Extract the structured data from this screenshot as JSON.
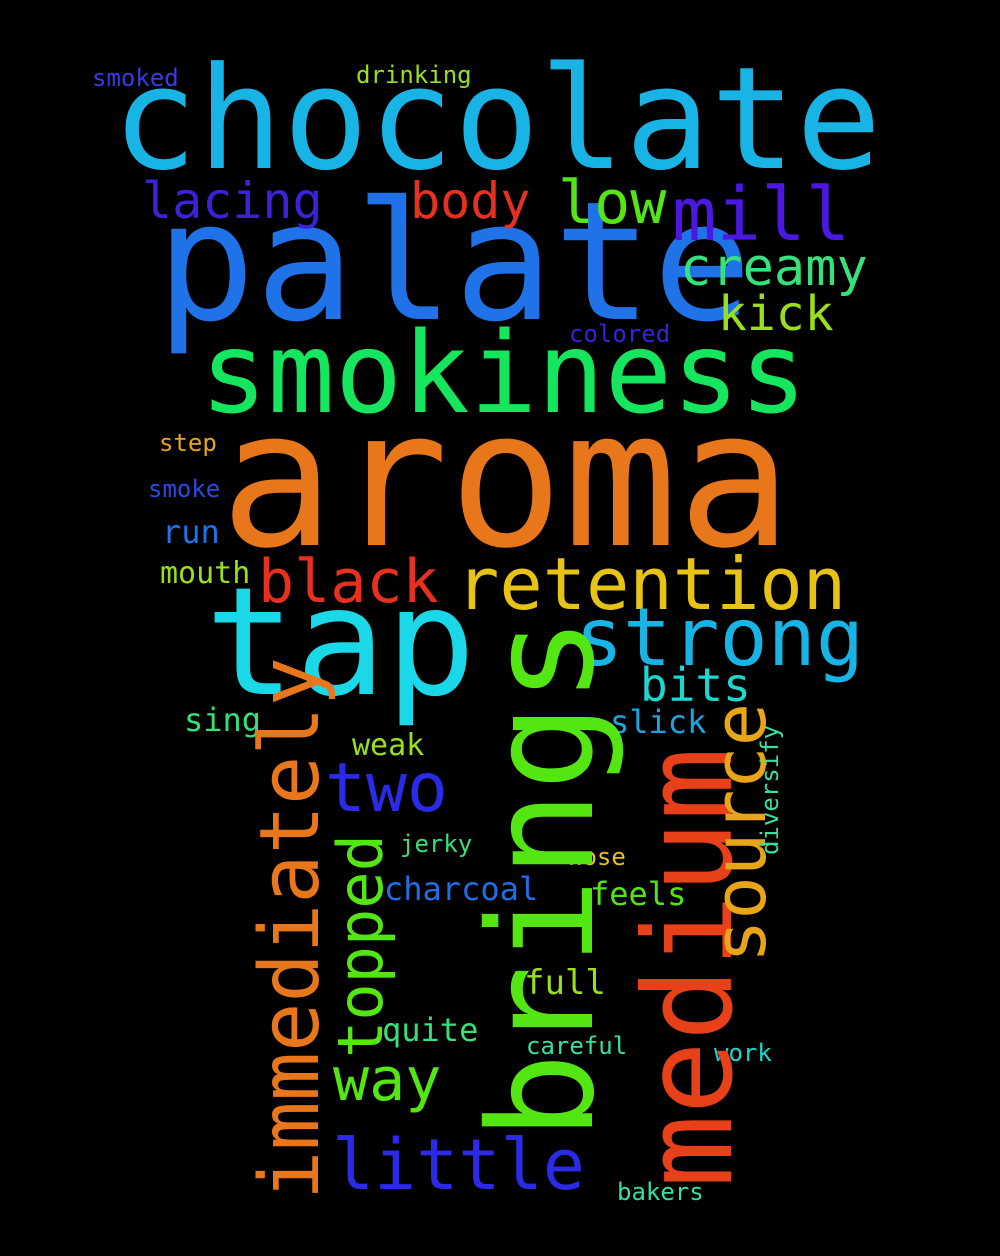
{
  "background": "#000000",
  "words": [
    {
      "id": "chocolate",
      "text": "chocolate",
      "color": "#17b4e5",
      "orientation": "horizontal"
    },
    {
      "id": "palate",
      "text": "palate",
      "color": "#1f72e8",
      "orientation": "horizontal"
    },
    {
      "id": "smokiness",
      "text": "smokiness",
      "color": "#16e55e",
      "orientation": "horizontal"
    },
    {
      "id": "aroma",
      "text": "aroma",
      "color": "#e8761a",
      "orientation": "horizontal"
    },
    {
      "id": "tap",
      "text": "tap",
      "color": "#1ad8e8",
      "orientation": "horizontal"
    },
    {
      "id": "brings",
      "text": "brings",
      "color": "#54e612",
      "orientation": "vertical"
    },
    {
      "id": "medium",
      "text": "medium",
      "color": "#e84018",
      "orientation": "vertical"
    },
    {
      "id": "retention",
      "text": "retention",
      "color": "#e6c315",
      "orientation": "horizontal"
    },
    {
      "id": "strong",
      "text": "strong",
      "color": "#17b4e5",
      "orientation": "horizontal"
    },
    {
      "id": "black",
      "text": "black",
      "color": "#e8301e",
      "orientation": "horizontal"
    },
    {
      "id": "immediately",
      "text": "immediately",
      "color": "#e8761a",
      "orientation": "vertical"
    },
    {
      "id": "source",
      "text": "source",
      "color": "#e8a518",
      "orientation": "vertical"
    },
    {
      "id": "two",
      "text": "two",
      "color": "#2a2ae8",
      "orientation": "horizontal"
    },
    {
      "id": "topped",
      "text": "topped",
      "color": "#54e612",
      "orientation": "vertical"
    },
    {
      "id": "little",
      "text": "little",
      "color": "#2a2ae8",
      "orientation": "horizontal"
    },
    {
      "id": "way",
      "text": "way",
      "color": "#54e612",
      "orientation": "horizontal"
    },
    {
      "id": "mill",
      "text": "mill",
      "color": "#4a18e0",
      "orientation": "horizontal"
    },
    {
      "id": "low",
      "text": "low",
      "color": "#54e612",
      "orientation": "horizontal"
    },
    {
      "id": "body",
      "text": "body",
      "color": "#e8301e",
      "orientation": "horizontal"
    },
    {
      "id": "lacing",
      "text": "lacing",
      "color": "#3a22d8",
      "orientation": "horizontal"
    },
    {
      "id": "creamy",
      "text": "creamy",
      "color": "#36e07a",
      "orientation": "horizontal"
    },
    {
      "id": "kick",
      "text": "kick",
      "color": "#9ae01a",
      "orientation": "horizontal"
    },
    {
      "id": "bits",
      "text": "bits",
      "color": "#1ad8d0",
      "orientation": "horizontal"
    },
    {
      "id": "charcoal",
      "text": "charcoal",
      "color": "#1f6ee8",
      "orientation": "horizontal"
    },
    {
      "id": "feels",
      "text": "feels",
      "color": "#54e612",
      "orientation": "horizontal"
    },
    {
      "id": "full",
      "text": "full",
      "color": "#9ae01a",
      "orientation": "horizontal"
    },
    {
      "id": "quite",
      "text": "quite",
      "color": "#36e07a",
      "orientation": "horizontal"
    },
    {
      "id": "slick",
      "text": "slick",
      "color": "#1aa6e0",
      "orientation": "horizontal"
    },
    {
      "id": "run",
      "text": "run",
      "color": "#1f72e8",
      "orientation": "horizontal"
    },
    {
      "id": "mouth",
      "text": "mouth",
      "color": "#9ae01a",
      "orientation": "horizontal"
    },
    {
      "id": "sing",
      "text": "sing",
      "color": "#36e07a",
      "orientation": "horizontal"
    },
    {
      "id": "weak",
      "text": "weak",
      "color": "#9ae01a",
      "orientation": "horizontal"
    },
    {
      "id": "jerky",
      "text": "jerky",
      "color": "#36e07a",
      "orientation": "horizontal"
    },
    {
      "id": "nose",
      "text": "nose",
      "color": "#e6c315",
      "orientation": "horizontal"
    },
    {
      "id": "diversify",
      "text": "diversify",
      "color": "#36e0a0",
      "orientation": "vertical"
    },
    {
      "id": "careful",
      "text": "careful",
      "color": "#36e0a0",
      "orientation": "horizontal"
    },
    {
      "id": "work",
      "text": "work",
      "color": "#1ad8d0",
      "orientation": "horizontal"
    },
    {
      "id": "bakers",
      "text": "bakers",
      "color": "#36e0a0",
      "orientation": "horizontal"
    },
    {
      "id": "smoked",
      "text": "smoked",
      "color": "#3a3ae0",
      "orientation": "horizontal"
    },
    {
      "id": "drinking",
      "text": "drinking",
      "color": "#9ae01a",
      "orientation": "horizontal"
    },
    {
      "id": "colored",
      "text": "colored",
      "color": "#3a22d8",
      "orientation": "horizontal"
    },
    {
      "id": "step",
      "text": "step",
      "color": "#e8a518",
      "orientation": "horizontal"
    },
    {
      "id": "smoke",
      "text": "smoke",
      "color": "#2a4ae8",
      "orientation": "horizontal"
    }
  ]
}
